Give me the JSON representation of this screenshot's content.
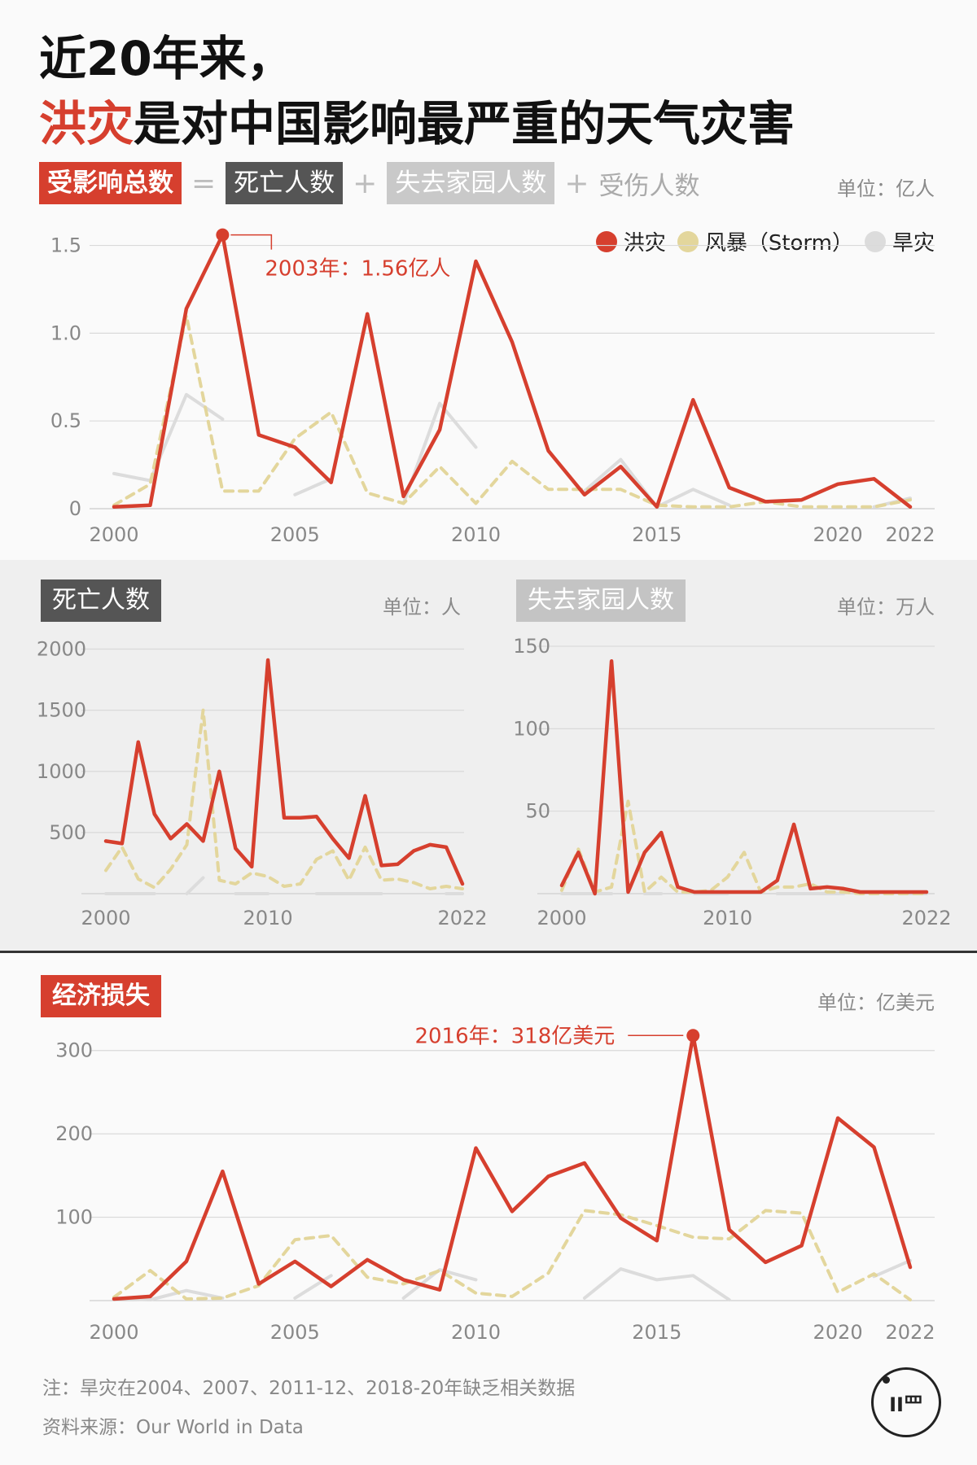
{
  "title": {
    "line1": "近20年来，",
    "line2_highlight": "洪灾",
    "line2_rest": "是对中国影响最严重的天气灾害"
  },
  "formula": {
    "total": "受影响总数",
    "eq": "=",
    "deaths": "死亡人数",
    "plus1": "+",
    "homeless": "失去家园人数",
    "plus2": "+",
    "injured": "受伤人数"
  },
  "colors": {
    "flood": "#d63f2e",
    "storm": "#e3d69c",
    "drought": "#dcdcdc",
    "accent": "#d63f2e"
  },
  "top_unit": "单位：亿人",
  "legend": {
    "flood": "洪灾",
    "storm": "风暴（Storm）",
    "drought": "旱灾"
  },
  "mid": {
    "deaths_label": "死亡人数",
    "deaths_unit": "单位：人",
    "homeless_label": "失去家园人数",
    "homeless_unit": "单位：万人"
  },
  "econ": {
    "label": "经济损失",
    "unit": "单位：亿美元"
  },
  "footer": {
    "note": "注：旱灾在2004、2007、2011-12、2018-20年缺乏相关数据",
    "source": "资料来源：Our World in Data"
  },
  "logo": {
    "text": "ΙΙ罒"
  },
  "chart_data": [
    {
      "type": "line",
      "title": "受影响总数",
      "x": [
        2000,
        2001,
        2002,
        2003,
        2004,
        2005,
        2006,
        2007,
        2008,
        2009,
        2010,
        2011,
        2012,
        2013,
        2014,
        2015,
        2016,
        2017,
        2018,
        2019,
        2020,
        2021,
        2022
      ],
      "ylim": [
        0,
        1.6
      ],
      "yticks": [
        0,
        0.5,
        1.0,
        1.5
      ],
      "ytick_labels": [
        "0",
        "0.5",
        "1.0",
        "1.5"
      ],
      "xticks": [
        2000,
        2005,
        2010,
        2015,
        2020,
        2022
      ],
      "series": [
        {
          "name": "洪灾",
          "style": "solid",
          "values": [
            0.01,
            0.02,
            1.14,
            1.56,
            0.42,
            0.35,
            0.15,
            1.11,
            0.07,
            0.45,
            1.41,
            0.95,
            0.33,
            0.08,
            0.24,
            0.01,
            0.62,
            0.12,
            0.04,
            0.05,
            0.14,
            0.17,
            0.01
          ]
        },
        {
          "name": "风暴（Storm）",
          "style": "dashed",
          "values": [
            0.02,
            0.14,
            1.1,
            0.1,
            0.1,
            0.4,
            0.55,
            0.09,
            0.03,
            0.24,
            0.03,
            0.27,
            0.11,
            0.11,
            0.11,
            0.02,
            0.01,
            0.01,
            0.04,
            0.01,
            0.01,
            0.01,
            0.05
          ]
        },
        {
          "name": "旱灾",
          "style": "solid",
          "values": [
            0.2,
            0.16,
            0.65,
            0.51,
            null,
            0.08,
            0.17,
            null,
            0.03,
            0.6,
            0.35,
            null,
            null,
            0.1,
            0.28,
            0.01,
            0.11,
            0.02,
            null,
            null,
            null,
            0.01,
            0.06
          ]
        }
      ],
      "annotation": {
        "x": 2003,
        "y": 1.56,
        "text": "2003年：1.56亿人"
      }
    },
    {
      "type": "line",
      "title": "死亡人数",
      "x": [
        2000,
        2001,
        2002,
        2003,
        2004,
        2005,
        2006,
        2007,
        2008,
        2009,
        2010,
        2011,
        2012,
        2013,
        2014,
        2015,
        2016,
        2017,
        2018,
        2019,
        2020,
        2021,
        2022
      ],
      "ylim": [
        0,
        2050
      ],
      "yticks": [
        500,
        1000,
        1500,
        2000
      ],
      "ytick_labels": [
        "500",
        "1000",
        "1500",
        "2000"
      ],
      "xticks": [
        2000,
        2010,
        2022
      ],
      "series": [
        {
          "name": "洪灾",
          "style": "solid",
          "values": [
            430,
            410,
            1240,
            650,
            450,
            570,
            430,
            1000,
            370,
            220,
            1910,
            620,
            620,
            630,
            450,
            290,
            800,
            230,
            240,
            350,
            400,
            380,
            80
          ]
        },
        {
          "name": "风暴（Storm）",
          "style": "dashed",
          "values": [
            190,
            380,
            120,
            50,
            200,
            400,
            1500,
            110,
            80,
            170,
            140,
            60,
            80,
            280,
            350,
            110,
            380,
            110,
            120,
            90,
            40,
            60,
            40
          ]
        },
        {
          "name": "旱灾",
          "style": "solid",
          "values": [
            0,
            0,
            0,
            0,
            null,
            0,
            130,
            null,
            0,
            0,
            0,
            null,
            null,
            0,
            0,
            0,
            0,
            0,
            null,
            null,
            null,
            0,
            0
          ]
        }
      ]
    },
    {
      "type": "line",
      "title": "失去家园人数",
      "x": [
        2000,
        2001,
        2002,
        2003,
        2004,
        2005,
        2006,
        2007,
        2008,
        2009,
        2010,
        2011,
        2012,
        2013,
        2014,
        2015,
        2016,
        2017,
        2018,
        2019,
        2020,
        2021,
        2022
      ],
      "ylim": [
        0,
        152
      ],
      "yticks": [
        50,
        100,
        150
      ],
      "ytick_labels": [
        "50",
        "100",
        "150"
      ],
      "xticks": [
        2000,
        2010,
        2022
      ],
      "series": [
        {
          "name": "洪灾",
          "style": "solid",
          "values": [
            5,
            25,
            0,
            141,
            1,
            25,
            37,
            4,
            1,
            1,
            1,
            1,
            1,
            8,
            42,
            3,
            4,
            3,
            1,
            1,
            1,
            1,
            1
          ]
        },
        {
          "name": "风暴（Storm）",
          "style": "dashed",
          "values": [
            2,
            27,
            1,
            4,
            56,
            1,
            10,
            1,
            1,
            2,
            10,
            25,
            1,
            4,
            4,
            6,
            1,
            1,
            0,
            0,
            0,
            0,
            0
          ]
        },
        {
          "name": "旱灾",
          "style": "solid",
          "values": [
            0,
            0,
            0,
            0,
            null,
            0,
            0,
            null,
            0,
            0,
            0,
            null,
            null,
            0,
            0,
            0,
            0,
            0,
            null,
            null,
            null,
            0,
            0
          ]
        }
      ]
    },
    {
      "type": "line",
      "title": "经济损失",
      "x": [
        2000,
        2001,
        2002,
        2003,
        2004,
        2005,
        2006,
        2007,
        2008,
        2009,
        2010,
        2011,
        2012,
        2013,
        2014,
        2015,
        2016,
        2017,
        2018,
        2019,
        2020,
        2021,
        2022
      ],
      "ylim": [
        0,
        330
      ],
      "yticks": [
        100,
        200,
        300
      ],
      "ytick_labels": [
        "100",
        "200",
        "300"
      ],
      "xticks": [
        2000,
        2005,
        2010,
        2015,
        2020,
        2022
      ],
      "series": [
        {
          "name": "洪灾",
          "style": "solid",
          "values": [
            2,
            5,
            47,
            155,
            20,
            47,
            17,
            49,
            25,
            13,
            183,
            107,
            149,
            165,
            99,
            72,
            318,
            85,
            46,
            66,
            219,
            184,
            40
          ]
        },
        {
          "name": "风暴（Storm）",
          "style": "dashed",
          "values": [
            4,
            36,
            2,
            3,
            18,
            73,
            78,
            28,
            20,
            36,
            9,
            5,
            33,
            108,
            103,
            90,
            76,
            74,
            108,
            105,
            10,
            32,
            1
          ]
        },
        {
          "name": "旱灾",
          "style": "solid",
          "values": [
            3,
            1,
            12,
            3,
            null,
            3,
            30,
            null,
            3,
            37,
            25,
            null,
            null,
            3,
            38,
            25,
            30,
            1,
            null,
            null,
            null,
            29,
            48
          ]
        }
      ],
      "annotation": {
        "x": 2016,
        "y": 318,
        "text": "2016年：318亿美元"
      }
    }
  ]
}
